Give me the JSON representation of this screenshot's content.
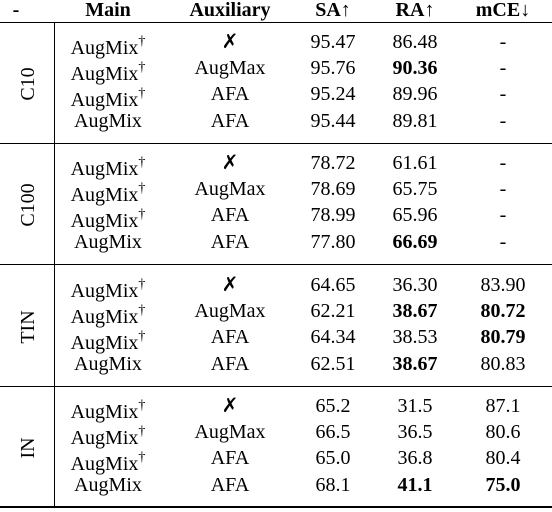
{
  "headers": [
    "-",
    "Main",
    "Auxiliary",
    "SA↑",
    "RA↑",
    "mCE↓"
  ],
  "dagger": "†",
  "groups": [
    {
      "label": "C10",
      "rows": [
        {
          "main": "AugMix",
          "dagger": true,
          "aux": "✗",
          "sa": "95.47",
          "ra": "86.48",
          "mce": "-",
          "bold": []
        },
        {
          "main": "AugMix",
          "dagger": true,
          "aux": "AugMax",
          "sa": "95.76",
          "ra": "90.36",
          "mce": "-",
          "bold": [
            "ra"
          ]
        },
        {
          "main": "AugMix",
          "dagger": true,
          "aux": "AFA",
          "sa": "95.24",
          "ra": "89.96",
          "mce": "-",
          "bold": []
        },
        {
          "main": "AugMix",
          "dagger": false,
          "aux": "AFA",
          "sa": "95.44",
          "ra": "89.81",
          "mce": "-",
          "bold": []
        }
      ]
    },
    {
      "label": "C100",
      "rows": [
        {
          "main": "AugMix",
          "dagger": true,
          "aux": "✗",
          "sa": "78.72",
          "ra": "61.61",
          "mce": "-",
          "bold": []
        },
        {
          "main": "AugMix",
          "dagger": true,
          "aux": "AugMax",
          "sa": "78.69",
          "ra": "65.75",
          "mce": "-",
          "bold": []
        },
        {
          "main": "AugMix",
          "dagger": true,
          "aux": "AFA",
          "sa": "78.99",
          "ra": "65.96",
          "mce": "-",
          "bold": []
        },
        {
          "main": "AugMix",
          "dagger": false,
          "aux": "AFA",
          "sa": "77.80",
          "ra": "66.69",
          "mce": "-",
          "bold": [
            "ra"
          ]
        }
      ]
    },
    {
      "label": "TIN",
      "rows": [
        {
          "main": "AugMix",
          "dagger": true,
          "aux": "✗",
          "sa": "64.65",
          "ra": "36.30",
          "mce": "83.90",
          "bold": []
        },
        {
          "main": "AugMix",
          "dagger": true,
          "aux": "AugMax",
          "sa": "62.21",
          "ra": "38.67",
          "mce": "80.72",
          "bold": [
            "ra",
            "mce"
          ]
        },
        {
          "main": "AugMix",
          "dagger": true,
          "aux": "AFA",
          "sa": "64.34",
          "ra": "38.53",
          "mce": "80.79",
          "bold": [
            "mce"
          ]
        },
        {
          "main": "AugMix",
          "dagger": false,
          "aux": "AFA",
          "sa": "62.51",
          "ra": "38.67",
          "mce": "80.83",
          "bold": [
            "ra"
          ]
        }
      ]
    },
    {
      "label": "IN",
      "rows": [
        {
          "main": "AugMix",
          "dagger": true,
          "aux": "✗",
          "sa": "65.2",
          "ra": "31.5",
          "mce": "87.1",
          "bold": []
        },
        {
          "main": "AugMix",
          "dagger": true,
          "aux": "AugMax",
          "sa": "66.5",
          "ra": "36.5",
          "mce": "80.6",
          "bold": []
        },
        {
          "main": "AugMix",
          "dagger": true,
          "aux": "AFA",
          "sa": "65.0",
          "ra": "36.8",
          "mce": "80.4",
          "bold": []
        },
        {
          "main": "AugMix",
          "dagger": false,
          "aux": "AFA",
          "sa": "68.1",
          "ra": "41.1",
          "mce": "75.0",
          "bold": [
            "ra",
            "mce"
          ]
        }
      ]
    }
  ]
}
